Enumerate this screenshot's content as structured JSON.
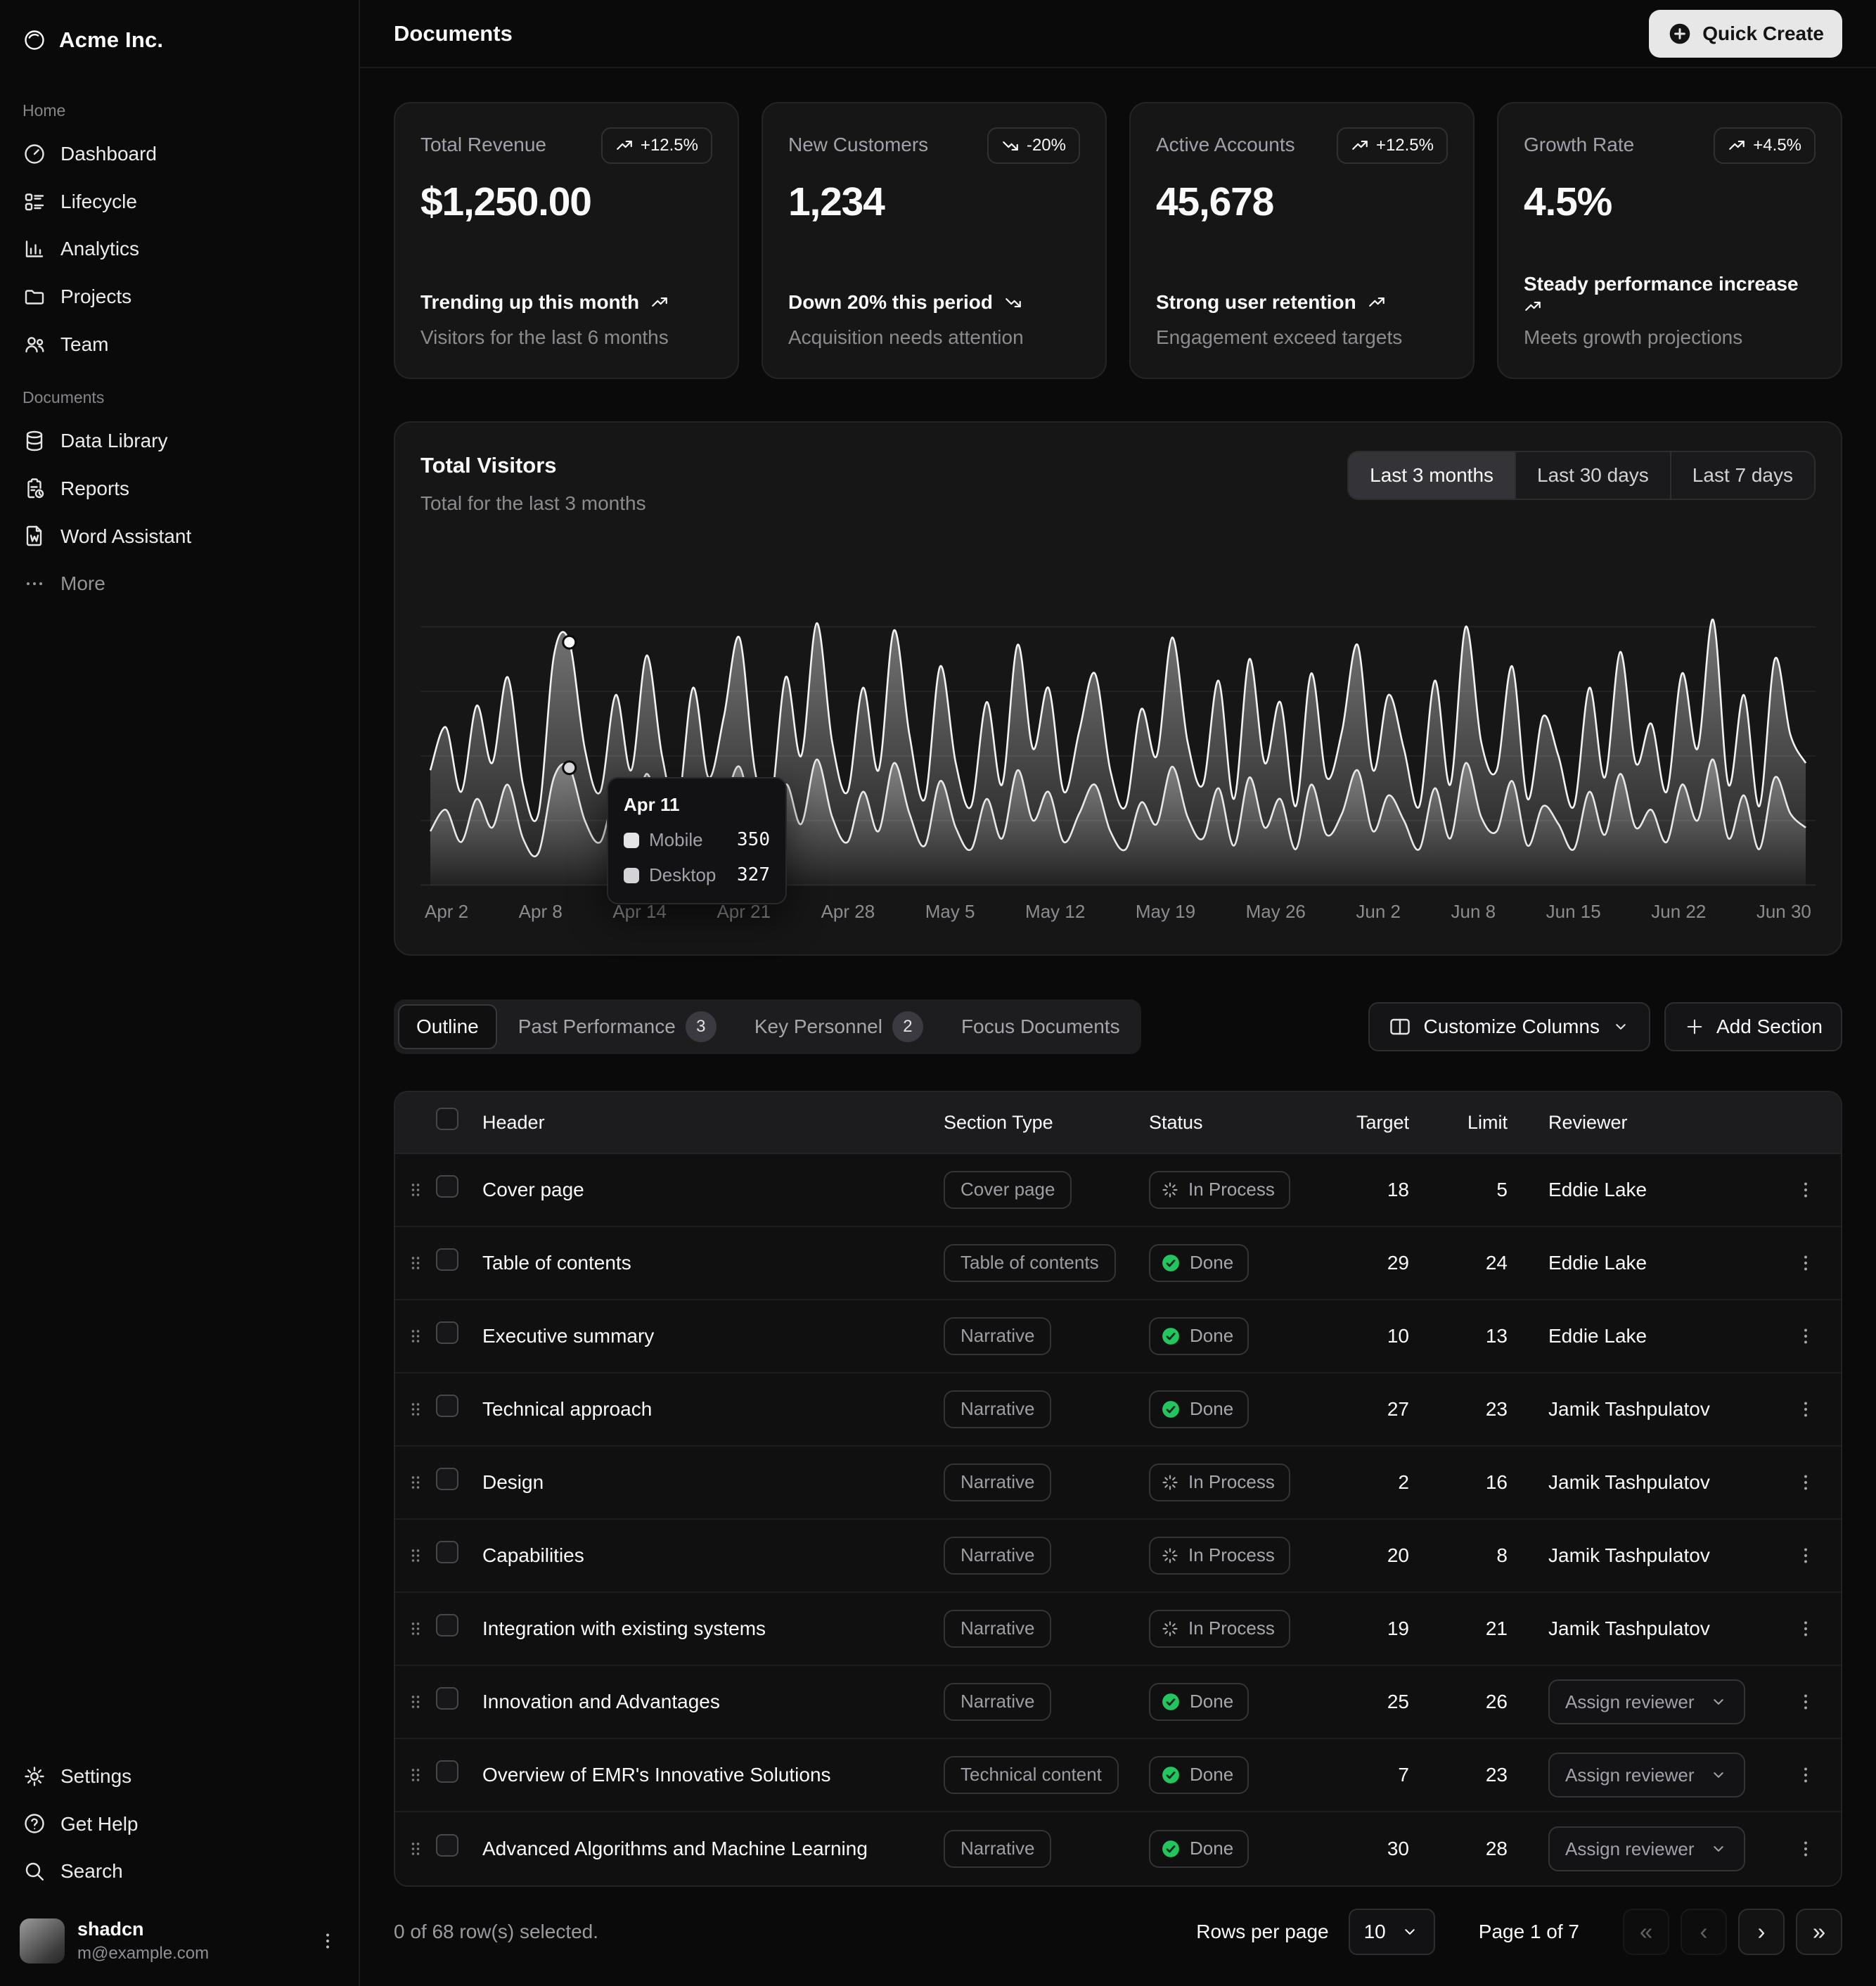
{
  "colors": {
    "background": "#0a0a0a",
    "card": "#161616",
    "status_done_green": "#22c55e",
    "series_mobile_swatch": "#e4e4e7",
    "series_desktop_swatch": "#d4d4d8"
  },
  "sidebar": {
    "brand": {
      "name": "Acme Inc.",
      "icon": "ring-icon"
    },
    "groups": [
      {
        "label": "Home",
        "items": [
          {
            "label": "Dashboard",
            "icon": "gauge"
          },
          {
            "label": "Lifecycle",
            "icon": "lifecycle"
          },
          {
            "label": "Analytics",
            "icon": "analytics"
          },
          {
            "label": "Projects",
            "icon": "folder"
          },
          {
            "label": "Team",
            "icon": "users"
          }
        ]
      },
      {
        "label": "Documents",
        "items": [
          {
            "label": "Data Library",
            "icon": "database"
          },
          {
            "label": "Reports",
            "icon": "report"
          },
          {
            "label": "Word Assistant",
            "icon": "word"
          },
          {
            "label": "More",
            "icon": "ellipsis",
            "muted": true
          }
        ]
      }
    ],
    "footer_items": [
      {
        "label": "Settings",
        "icon": "gear"
      },
      {
        "label": "Get Help",
        "icon": "help"
      },
      {
        "label": "Search",
        "icon": "search"
      }
    ],
    "user": {
      "name": "shadcn",
      "email": "m@example.com"
    }
  },
  "header": {
    "title": "Documents",
    "quick_create_label": "Quick Create"
  },
  "stat_cards": [
    {
      "title": "Total Revenue",
      "value": "$1,250.00",
      "badge": "+12.5%",
      "trend": "up",
      "footer_bold": "Trending up this month",
      "footer_muted": "Visitors for the last 6 months"
    },
    {
      "title": "New Customers",
      "value": "1,234",
      "badge": "-20%",
      "trend": "down",
      "footer_bold": "Down 20% this period",
      "footer_muted": "Acquisition needs attention"
    },
    {
      "title": "Active Accounts",
      "value": "45,678",
      "badge": "+12.5%",
      "trend": "up",
      "footer_bold": "Strong user retention",
      "footer_muted": "Engagement exceed targets"
    },
    {
      "title": "Growth Rate",
      "value": "4.5%",
      "badge": "+4.5%",
      "trend": "up",
      "footer_bold": "Steady performance increase",
      "footer_muted": "Meets growth projections"
    }
  ],
  "visitors_chart": {
    "title": "Total Visitors",
    "subtitle": "Total for the last 3 months",
    "periods": [
      "Last 3 months",
      "Last 30 days",
      "Last 7 days"
    ],
    "active_period": "Last 3 months",
    "tooltip": {
      "date": "Apr 11",
      "rows": [
        {
          "label": "Mobile",
          "value": "350"
        },
        {
          "label": "Desktop",
          "value": "327"
        }
      ]
    }
  },
  "chart_data": {
    "type": "area",
    "stacked": true,
    "title": "Total Visitors",
    "x_tick_labels": [
      "Apr 2",
      "Apr 8",
      "Apr 14",
      "Apr 21",
      "Apr 28",
      "May 5",
      "May 12",
      "May 19",
      "May 26",
      "Jun 2",
      "Jun 8",
      "Jun 15",
      "Jun 22",
      "Jun 30"
    ],
    "hover_point": {
      "x_label": "Apr 11",
      "index": 9,
      "mobile": 350,
      "desktop": 327
    },
    "ylim": [
      0,
      900
    ],
    "grid_values": [
      180,
      360,
      540,
      720
    ],
    "series": [
      {
        "name": "Desktop",
        "values": [
          150,
          210,
          120,
          240,
          160,
          280,
          130,
          90,
          300,
          327,
          180,
          120,
          250,
          150,
          310,
          170,
          100,
          260,
          140,
          220,
          330,
          150,
          100,
          280,
          170,
          350,
          190,
          120,
          260,
          150,
          340,
          200,
          110,
          290,
          160,
          100,
          240,
          130,
          320,
          180,
          260,
          120,
          200,
          280,
          150,
          100,
          230,
          170,
          330,
          190,
          130,
          270,
          110,
          300,
          160,
          240,
          100,
          280,
          140,
          200,
          320,
          150,
          250,
          180,
          100,
          270,
          130,
          340,
          190,
          150,
          290,
          110,
          220,
          170,
          100,
          260,
          140,
          310,
          160,
          210,
          120,
          280,
          180,
          350,
          130,
          250,
          100,
          300,
          200,
          160
        ]
      },
      {
        "name": "Mobile",
        "values": [
          170,
          230,
          140,
          260,
          180,
          300,
          150,
          110,
          340,
          350,
          200,
          140,
          280,
          170,
          330,
          190,
          120,
          290,
          160,
          250,
          360,
          170,
          120,
          300,
          190,
          380,
          210,
          140,
          290,
          170,
          370,
          220,
          130,
          320,
          180,
          120,
          270,
          150,
          350,
          200,
          290,
          140,
          230,
          310,
          170,
          120,
          260,
          190,
          360,
          210,
          150,
          300,
          130,
          330,
          180,
          270,
          120,
          310,
          160,
          230,
          350,
          170,
          280,
          200,
          120,
          300,
          150,
          380,
          210,
          170,
          320,
          130,
          250,
          190,
          120,
          290,
          160,
          340,
          180,
          240,
          140,
          310,
          200,
          390,
          150,
          280,
          120,
          330,
          220,
          180
        ]
      }
    ]
  },
  "table_section": {
    "tabs": [
      {
        "label": "Outline",
        "active": true
      },
      {
        "label": "Past Performance",
        "count": "3"
      },
      {
        "label": "Key Personnel",
        "count": "2"
      },
      {
        "label": "Focus Documents"
      }
    ],
    "customize_columns_label": "Customize Columns",
    "add_section_label": "Add Section",
    "columns": [
      "Header",
      "Section Type",
      "Status",
      "Target",
      "Limit",
      "Reviewer"
    ],
    "assign_reviewer_label": "Assign reviewer",
    "rows": [
      {
        "header": "Cover page",
        "type": "Cover page",
        "status": "In Process",
        "target": "18",
        "limit": "5",
        "reviewer": "Eddie Lake"
      },
      {
        "header": "Table of contents",
        "type": "Table of contents",
        "status": "Done",
        "target": "29",
        "limit": "24",
        "reviewer": "Eddie Lake"
      },
      {
        "header": "Executive summary",
        "type": "Narrative",
        "status": "Done",
        "target": "10",
        "limit": "13",
        "reviewer": "Eddie Lake"
      },
      {
        "header": "Technical approach",
        "type": "Narrative",
        "status": "Done",
        "target": "27",
        "limit": "23",
        "reviewer": "Jamik Tashpulatov"
      },
      {
        "header": "Design",
        "type": "Narrative",
        "status": "In Process",
        "target": "2",
        "limit": "16",
        "reviewer": "Jamik Tashpulatov"
      },
      {
        "header": "Capabilities",
        "type": "Narrative",
        "status": "In Process",
        "target": "20",
        "limit": "8",
        "reviewer": "Jamik Tashpulatov"
      },
      {
        "header": "Integration with existing systems",
        "type": "Narrative",
        "status": "In Process",
        "target": "19",
        "limit": "21",
        "reviewer": "Jamik Tashpulatov"
      },
      {
        "header": "Innovation and Advantages",
        "type": "Narrative",
        "status": "Done",
        "target": "25",
        "limit": "26",
        "reviewer_select": true
      },
      {
        "header": "Overview of EMR's Innovative Solutions",
        "type": "Technical content",
        "status": "Done",
        "target": "7",
        "limit": "23",
        "reviewer_select": true
      },
      {
        "header": "Advanced Algorithms and Machine Learning",
        "type": "Narrative",
        "status": "Done",
        "target": "30",
        "limit": "28",
        "reviewer_select": true
      }
    ],
    "footer": {
      "selection": "0 of 68 row(s) selected.",
      "rows_per_page_label": "Rows per page",
      "rows_per_page": "10",
      "page_label": "Page 1 of 7"
    }
  }
}
